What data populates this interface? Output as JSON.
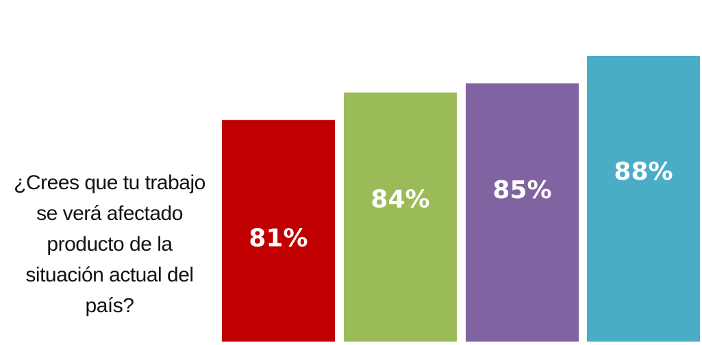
{
  "question": "¿Crees que tu trabajo\nse verá afectado\nproducto de la\nsituación actual del\npaís?",
  "chart_data": {
    "type": "bar",
    "categories": [],
    "values": [
      81,
      84,
      85,
      88
    ],
    "labels": [
      "81%",
      "84%",
      "85%",
      "88%"
    ],
    "colors": [
      "#c00000",
      "#9bbb59",
      "#8064a2",
      "#4bacc6"
    ],
    "ylim": [
      0,
      100
    ],
    "grid": false
  }
}
